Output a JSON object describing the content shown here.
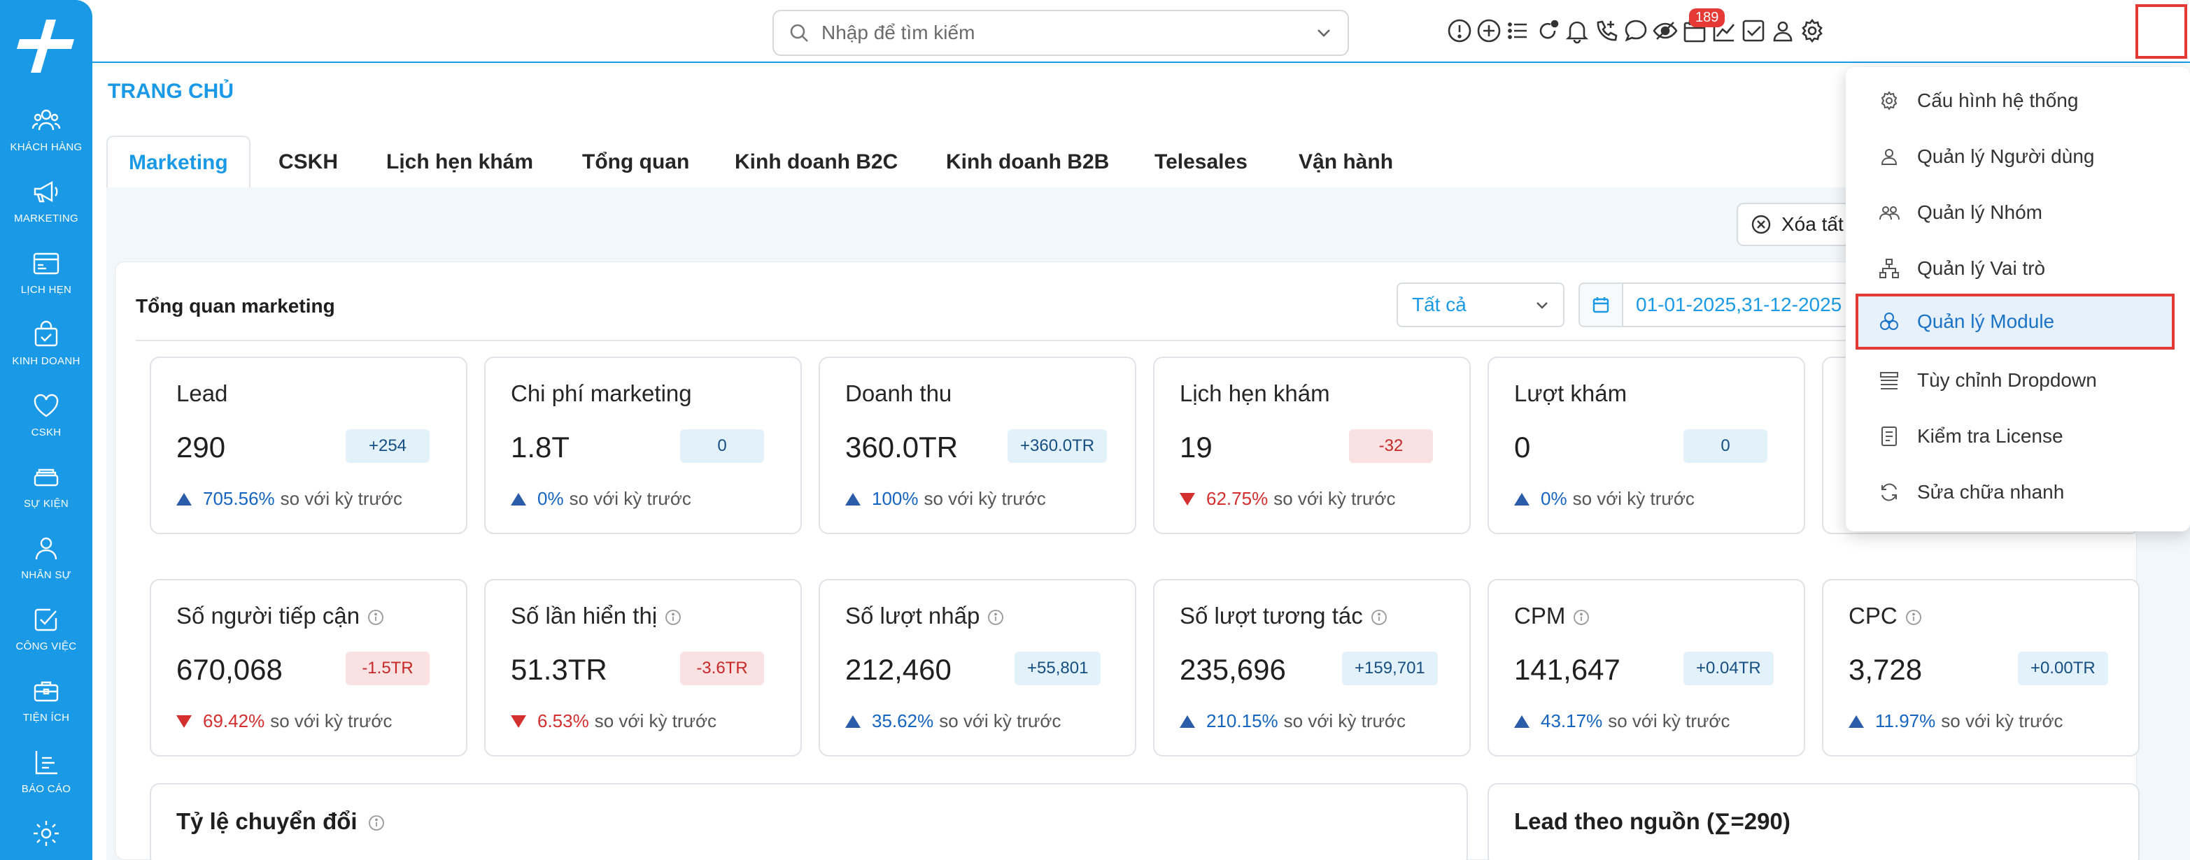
{
  "sidebar": {
    "items": [
      {
        "label": "KHÁCH HÀNG",
        "icon": "customers-icon"
      },
      {
        "label": "MARKETING",
        "icon": "megaphone-icon"
      },
      {
        "label": "LỊCH HẸN",
        "icon": "calendar-card-icon"
      },
      {
        "label": "KINH DOANH",
        "icon": "shopping-bag-icon"
      },
      {
        "label": "CSKH",
        "icon": "heart-icon"
      },
      {
        "label": "SỰ KIỆN",
        "icon": "event-icon"
      },
      {
        "label": "NHÂN SỰ",
        "icon": "person-icon"
      },
      {
        "label": "CÔNG VIỆC",
        "icon": "task-icon"
      },
      {
        "label": "TIỆN ÍCH",
        "icon": "briefcase-icon"
      },
      {
        "label": "BÁO CÁO",
        "icon": "report-icon"
      },
      {
        "label": "",
        "icon": "gear-icon"
      }
    ]
  },
  "topbar": {
    "search_placeholder": "Nhập để tìm kiếm",
    "notification_count": "189",
    "icons": [
      "alert-icon",
      "add-circle-icon",
      "list-icon",
      "refresh-dot-icon",
      "bell-icon",
      "phone-icon",
      "chat-icon",
      "eye-off-icon",
      "calendar-icon",
      "chart-line-icon",
      "checkbox-icon",
      "user-icon",
      "settings-icon"
    ]
  },
  "page": {
    "title": "TRANG CHỦ",
    "tabs": [
      "Marketing",
      "CSKH",
      "Lịch hẹn khám",
      "Tổng quan",
      "Kinh doanh B2C",
      "Kinh doanh B2B",
      "Telesales",
      "Vận hành"
    ],
    "active_tab": "Marketing",
    "clear_button": "Xóa tất"
  },
  "overview": {
    "title": "Tổng quan marketing",
    "filter_value": "Tất cả",
    "date_range": "01-01-2025,31-12-2025"
  },
  "kpis_row1": [
    {
      "label": "Lead",
      "value": "290",
      "badge": "+254",
      "badge_type": "up",
      "pct": "705.56%",
      "direction": "up",
      "compare": "so với kỳ trước"
    },
    {
      "label": "Chi phí marketing",
      "value": "1.8T",
      "badge": "0",
      "badge_type": "up",
      "pct": "0%",
      "direction": "up",
      "compare": "so với kỳ trước"
    },
    {
      "label": "Doanh thu",
      "value": "360.0TR",
      "badge": "+360.0TR",
      "badge_type": "up",
      "pct": "100%",
      "direction": "up",
      "compare": "so với kỳ trước"
    },
    {
      "label": "Lịch hẹn khám",
      "value": "19",
      "badge": "-32",
      "badge_type": "down",
      "pct": "62.75%",
      "direction": "down",
      "compare": "so với kỳ trước"
    },
    {
      "label": "Lượt khám",
      "value": "0",
      "badge": "0",
      "badge_type": "up",
      "pct": "0%",
      "direction": "up",
      "compare": "so với kỳ trước"
    }
  ],
  "kpis_row2": [
    {
      "label": "Số người tiếp cận",
      "value": "670,068",
      "badge": "-1.5TR",
      "badge_type": "down",
      "pct": "69.42%",
      "direction": "down",
      "compare": "so với kỳ trước"
    },
    {
      "label": "Số lần hiển thị",
      "value": "51.3TR",
      "badge": "-3.6TR",
      "badge_type": "down",
      "pct": "6.53%",
      "direction": "down",
      "compare": "so với kỳ trước"
    },
    {
      "label": "Số lượt nhấp",
      "value": "212,460",
      "badge": "+55,801",
      "badge_type": "up",
      "pct": "35.62%",
      "direction": "up",
      "compare": "so với kỳ trước"
    },
    {
      "label": "Số lượt tương tác",
      "value": "235,696",
      "badge": "+159,701",
      "badge_type": "up",
      "pct": "210.15%",
      "direction": "up",
      "compare": "so với kỳ trước"
    },
    {
      "label": "CPM",
      "value": "141,647",
      "badge": "+0.04TR",
      "badge_type": "up",
      "pct": "43.17%",
      "direction": "up",
      "compare": "so với kỳ trước"
    },
    {
      "label": "CPC",
      "value": "3,728",
      "badge": "+0.00TR",
      "badge_type": "up",
      "pct": "11.97%",
      "direction": "up",
      "compare": "so với kỳ trước"
    }
  ],
  "bottom_cards": {
    "conversion_title": "Tỷ lệ chuyển đổi",
    "lead_source_title": "Lead theo nguồn (∑=290)"
  },
  "settings_menu": {
    "items": [
      {
        "label": "Cấu hình hệ thống",
        "icon": "gear-icon"
      },
      {
        "label": "Quản lý Người dùng",
        "icon": "user-icon"
      },
      {
        "label": "Quản lý Nhóm",
        "icon": "group-icon"
      },
      {
        "label": "Quản lý Vai trò",
        "icon": "hierarchy-icon"
      },
      {
        "label": "Quản lý Module",
        "icon": "modules-icon"
      },
      {
        "label": "Tùy chỉnh Dropdown",
        "icon": "dropdown-list-icon"
      },
      {
        "label": "Kiểm tra License",
        "icon": "license-icon"
      },
      {
        "label": "Sửa chữa nhanh",
        "icon": "sync-icon"
      }
    ],
    "active_index": 4
  },
  "colors": {
    "primary": "#1a9ae6",
    "highlight_border": "#e53935",
    "up": "#1565c0",
    "down": "#d32f2f"
  }
}
